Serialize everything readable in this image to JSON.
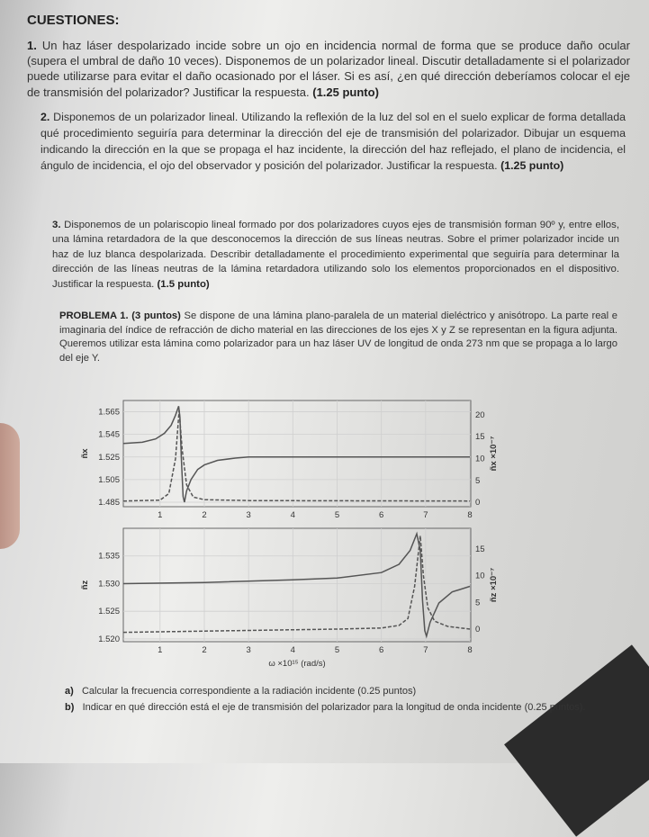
{
  "heading": "CUESTIONES:",
  "questions": [
    {
      "num": "1.",
      "text": "Un haz láser despolarizado incide sobre un ojo en incidencia normal de forma que se produce daño ocular (supera el umbral de daño 10 veces). Disponemos de un polarizador lineal. Discutir detalladamente si el polarizador puede utilizarse para evitar el daño ocasionado por el láser. Si es así, ¿en qué dirección deberíamos colocar el eje de transmisión del polarizador? Justificar la respuesta.",
      "points": "(1.25 punto)"
    },
    {
      "num": "2.",
      "text": "Disponemos de un polarizador lineal. Utilizando la reflexión de la luz del sol en el suelo explicar de forma detallada qué procedimiento seguiría para determinar la dirección del eje de transmisión del polarizador. Dibujar un esquema indicando la dirección en la que se propaga el haz incidente, la dirección del haz reflejado, el plano de incidencia, el ángulo de incidencia, el ojo del observador y posición del polarizador. Justificar la respuesta.",
      "points": "(1.25 punto)"
    },
    {
      "num": "3.",
      "text": "Disponemos de un polariscopio lineal formado por dos polarizadores cuyos ejes de transmisión forman 90º y, entre ellos, una lámina retardadora de la que desconocemos la dirección de sus líneas neutras. Sobre el primer polarizador incide un haz de luz blanca despolarizada. Describir detalladamente el procedimiento experimental que seguiría para determinar la dirección de las líneas neutras de la lámina retardadora utilizando solo los elementos proporcionados en el dispositivo. Justificar la respuesta.",
      "points": "(1.5 punto)"
    }
  ],
  "problem": {
    "title": "PROBLEMA 1. (3 puntos)",
    "text": "Se dispone de una lámina plano-paralela de un material dieléctrico y anisótropo. La parte real e imaginaria del índice de refracción de dicho material en las direcciones de los ejes X y Z se representan en la figura adjunta. Queremos utilizar esta lámina como polarizador para un haz láser UV de longitud de onda 273 nm que se propaga a lo largo del eje Y.",
    "parts": [
      {
        "label": "a)",
        "text": "Calcular la frecuencia correspondiente a la radiación incidente (0.25 puntos)"
      },
      {
        "label": "b)",
        "text": "Indicar en qué dirección está el eje de transmisión del polarizador para la longitud de onda incidente (0.25 puntos)."
      }
    ]
  },
  "chart_data": [
    {
      "type": "line",
      "xlabel": "ω ×10¹⁵ (rad/s)",
      "ylabel": "ñx",
      "y2label": "ñx ×10⁻⁷",
      "xlim": [
        0.17,
        8.02
      ],
      "ylim": [
        1.481,
        1.575
      ],
      "y2lim": [
        -1,
        23.25
      ],
      "xticks": [
        1,
        2,
        3,
        4,
        5,
        6,
        7,
        8
      ],
      "yticks": [
        "1.485",
        "1.505",
        "1.525",
        "1.545",
        "1.565"
      ],
      "y2ticks": [
        0,
        5,
        10,
        15,
        20
      ],
      "grid": true,
      "series": [
        {
          "style": "solid",
          "axis": "left",
          "points": [
            [
              0.17,
              1.537
            ],
            [
              0.6,
              1.538
            ],
            [
              0.9,
              1.541
            ],
            [
              1.1,
              1.546
            ],
            [
              1.25,
              1.553
            ],
            [
              1.35,
              1.562
            ],
            [
              1.42,
              1.57
            ],
            [
              1.45,
              1.56
            ],
            [
              1.48,
              1.525
            ],
            [
              1.52,
              1.49
            ],
            [
              1.55,
              1.485
            ],
            [
              1.6,
              1.495
            ],
            [
              1.7,
              1.505
            ],
            [
              1.85,
              1.514
            ],
            [
              2.0,
              1.518
            ],
            [
              2.3,
              1.522
            ],
            [
              2.7,
              1.524
            ],
            [
              3.0,
              1.525
            ],
            [
              5,
              1.525
            ],
            [
              8,
              1.525
            ]
          ]
        },
        {
          "style": "dashed",
          "axis": "right",
          "points": [
            [
              0.17,
              0.3
            ],
            [
              1.0,
              0.5
            ],
            [
              1.2,
              2
            ],
            [
              1.35,
              10
            ],
            [
              1.43,
              21
            ],
            [
              1.5,
              12
            ],
            [
              1.6,
              4
            ],
            [
              1.75,
              1.2
            ],
            [
              2,
              0.6
            ],
            [
              3,
              0.4
            ],
            [
              8,
              0.3
            ]
          ]
        }
      ]
    },
    {
      "type": "line",
      "xlabel": "ω ×10¹⁵ (rad/s)",
      "ylabel": "ñz",
      "y2label": "ñz ×10⁻⁷",
      "xlim": [
        0.17,
        8.02
      ],
      "ylim": [
        1.5195,
        1.54
      ],
      "y2lim": [
        -2.36,
        18.9
      ],
      "xticks": [
        1,
        2,
        3,
        4,
        5,
        6,
        7,
        8
      ],
      "yticks": [
        "1.520",
        "1.525",
        "1.530",
        "1.535"
      ],
      "y2ticks": [
        0,
        5,
        10,
        15
      ],
      "grid": true,
      "series": [
        {
          "style": "solid",
          "axis": "left",
          "points": [
            [
              0.17,
              1.53
            ],
            [
              2,
              1.5302
            ],
            [
              4,
              1.5307
            ],
            [
              5,
              1.531
            ],
            [
              6,
              1.532
            ],
            [
              6.4,
              1.5335
            ],
            [
              6.65,
              1.536
            ],
            [
              6.8,
              1.539
            ],
            [
              6.88,
              1.536
            ],
            [
              6.93,
              1.527
            ],
            [
              6.98,
              1.5215
            ],
            [
              7.02,
              1.5205
            ],
            [
              7.1,
              1.523
            ],
            [
              7.3,
              1.5265
            ],
            [
              7.6,
              1.5285
            ],
            [
              8,
              1.5295
            ]
          ]
        },
        {
          "style": "dashed",
          "axis": "right",
          "points": [
            [
              0.17,
              -0.6
            ],
            [
              5,
              0
            ],
            [
              6,
              0.2
            ],
            [
              6.4,
              0.7
            ],
            [
              6.6,
              2
            ],
            [
              6.75,
              8
            ],
            [
              6.88,
              17.5
            ],
            [
              6.95,
              10
            ],
            [
              7.05,
              4
            ],
            [
              7.2,
              1.5
            ],
            [
              7.5,
              0.5
            ],
            [
              8,
              0
            ]
          ]
        }
      ]
    }
  ]
}
